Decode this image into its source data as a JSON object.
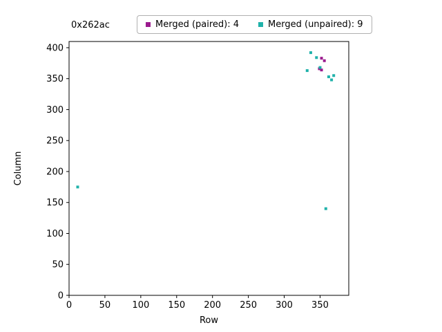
{
  "chart_data": {
    "type": "scatter",
    "title": "0x262ac",
    "xlabel": "Row",
    "ylabel": "Column",
    "xlim": [
      0,
      390
    ],
    "ylim": [
      0,
      410
    ],
    "xticks": [
      0,
      50,
      100,
      150,
      200,
      250,
      300,
      350
    ],
    "yticks": [
      0,
      50,
      100,
      150,
      200,
      250,
      300,
      350,
      400
    ],
    "grid": false,
    "legend_position": "top",
    "series": [
      {
        "name": "Merged (paired): 4",
        "color": "#9b1b8e",
        "marker": "square",
        "points": [
          [
            352,
            383
          ],
          [
            356,
            379
          ],
          [
            349,
            366
          ],
          [
            352,
            364
          ]
        ]
      },
      {
        "name": "Merged (unpaired): 9",
        "color": "#20b2aa",
        "marker": "square",
        "points": [
          [
            12,
            175
          ],
          [
            332,
            363
          ],
          [
            337,
            392
          ],
          [
            345,
            384
          ],
          [
            350,
            368
          ],
          [
            358,
            140
          ],
          [
            362,
            353
          ],
          [
            366,
            348
          ],
          [
            369,
            355
          ]
        ]
      }
    ]
  }
}
